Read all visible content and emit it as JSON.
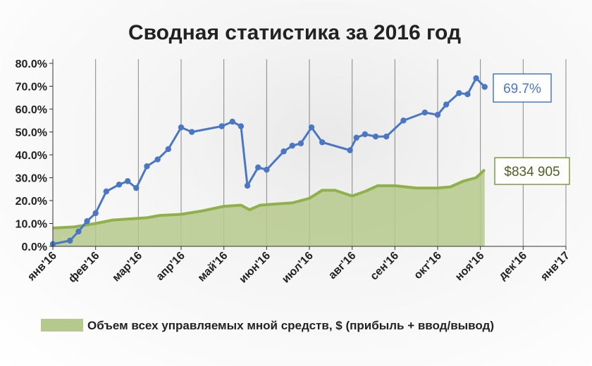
{
  "chart_data": {
    "type": "line",
    "title": "Сводная статистика за 2016 год",
    "ylim": [
      0,
      80
    ],
    "yticks": [
      "0.0%",
      "10.0%",
      "20.0%",
      "30.0%",
      "40.0%",
      "50.0%",
      "60.0%",
      "70.0%",
      "80.0%"
    ],
    "xticks": [
      "янв'16",
      "фев'16",
      "мар'16",
      "апр'16",
      "май'16",
      "июн'16",
      "июл'16",
      "авг'16",
      "сен'16",
      "окт'16",
      "ноя'16",
      "дек'16",
      "янв'17"
    ],
    "grid": "vertical",
    "series": [
      {
        "kind": "line-markers",
        "color": "#4a77c4",
        "points": [
          [
            0.0,
            1.0
          ],
          [
            0.4,
            2.5
          ],
          [
            0.6,
            6.5
          ],
          [
            0.8,
            11.0
          ],
          [
            1.0,
            14.5
          ],
          [
            1.25,
            24.0
          ],
          [
            1.55,
            27.0
          ],
          [
            1.75,
            28.5
          ],
          [
            1.95,
            25.5
          ],
          [
            2.2,
            35.0
          ],
          [
            2.45,
            38.0
          ],
          [
            2.7,
            42.5
          ],
          [
            3.0,
            52.0
          ],
          [
            3.25,
            50.0
          ],
          [
            3.95,
            52.5
          ],
          [
            4.2,
            54.5
          ],
          [
            4.4,
            52.5
          ],
          [
            4.55,
            26.5
          ],
          [
            4.8,
            34.5
          ],
          [
            5.0,
            33.5
          ],
          [
            5.4,
            41.5
          ],
          [
            5.6,
            44.0
          ],
          [
            5.8,
            45.0
          ],
          [
            6.05,
            52.0
          ],
          [
            6.3,
            45.5
          ],
          [
            6.95,
            42.0
          ],
          [
            7.1,
            47.5
          ],
          [
            7.3,
            49.0
          ],
          [
            7.55,
            48.0
          ],
          [
            7.8,
            48.0
          ],
          [
            8.2,
            55.0
          ],
          [
            8.7,
            58.5
          ],
          [
            9.0,
            57.5
          ],
          [
            9.2,
            62.0
          ],
          [
            9.5,
            67.0
          ],
          [
            9.7,
            66.5
          ],
          [
            9.9,
            73.5
          ],
          [
            10.1,
            69.7
          ]
        ],
        "end_label": "69.7%"
      },
      {
        "kind": "area",
        "color": "#8fb14a",
        "fill": "#b5c98d",
        "name": "Объем всех управляемых мной средств, $ (прибыль + ввод/вывод)",
        "points": [
          [
            0.0,
            8.0
          ],
          [
            0.5,
            8.5
          ],
          [
            1.0,
            10.0
          ],
          [
            1.4,
            11.5
          ],
          [
            1.8,
            12.0
          ],
          [
            2.2,
            12.5
          ],
          [
            2.5,
            13.5
          ],
          [
            3.0,
            14.0
          ],
          [
            3.5,
            15.5
          ],
          [
            4.0,
            17.5
          ],
          [
            4.4,
            18.0
          ],
          [
            4.6,
            16.0
          ],
          [
            4.85,
            18.0
          ],
          [
            5.2,
            18.5
          ],
          [
            5.6,
            19.0
          ],
          [
            6.0,
            21.0
          ],
          [
            6.3,
            24.5
          ],
          [
            6.6,
            24.5
          ],
          [
            7.0,
            22.0
          ],
          [
            7.3,
            24.0
          ],
          [
            7.6,
            26.5
          ],
          [
            8.0,
            26.5
          ],
          [
            8.5,
            25.5
          ],
          [
            9.0,
            25.5
          ],
          [
            9.3,
            26.0
          ],
          [
            9.6,
            28.5
          ],
          [
            9.9,
            30.0
          ],
          [
            10.1,
            33.5
          ]
        ],
        "end_label": "$834 905"
      }
    ],
    "legend": {
      "position": "bottom",
      "label": "Объем всех управляемых мной средств, $ (прибыль + ввод/вывод)"
    }
  }
}
